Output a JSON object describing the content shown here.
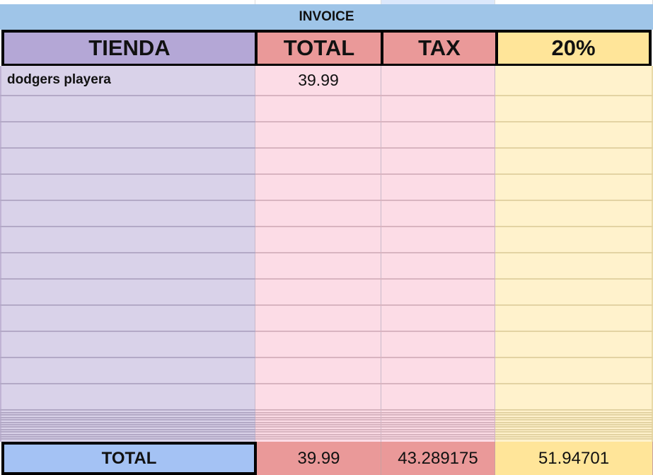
{
  "title": "INVOICE",
  "headers": [
    "TIENDA",
    "TOTAL",
    "TAX",
    "20%"
  ],
  "rows": [
    {
      "tienda": "dodgers playera",
      "total": "39.99",
      "tax": "",
      "pct": ""
    }
  ],
  "totals": {
    "label": "TOTAL",
    "total": "39.99",
    "tax": "43.289175",
    "pct": "51.94701"
  },
  "colors": {
    "banner": "#9fc5e8",
    "tienda_header": "#b4a7d6",
    "total_header": "#ea9999",
    "pct_header": "#ffe599",
    "tienda_body": "#d9d2e9",
    "pink_body": "#fcdce6",
    "pct_body": "#fff2cc",
    "total_label": "#a4c2f4"
  }
}
